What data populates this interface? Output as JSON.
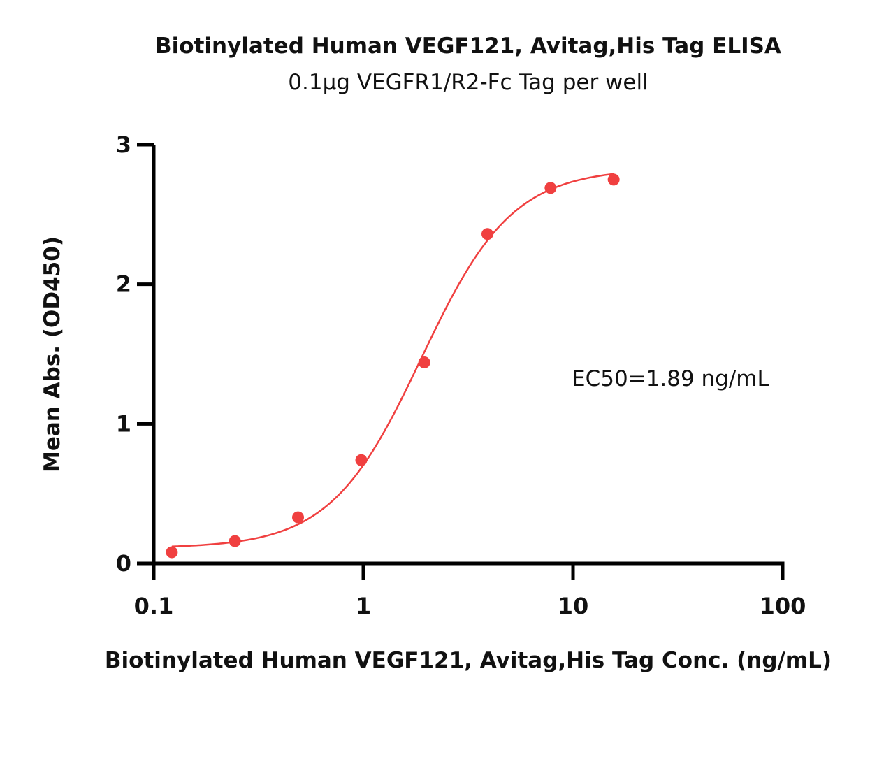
{
  "chart_data": {
    "type": "scatter",
    "title": "Biotinylated Human VEGF121, Avitag,His Tag ELISA",
    "subtitle": "0.1µg VEGFR1/R2-Fc Tag per well",
    "xlabel": "Biotinylated Human VEGF121, Avitag,His Tag Conc. (ng/mL)",
    "ylabel": "Mean Abs. (OD450)",
    "x_scale": "log",
    "xlim": [
      0.1,
      100
    ],
    "ylim": [
      0,
      3
    ],
    "x_ticks": [
      "0.1",
      "1",
      "10",
      "100"
    ],
    "y_ticks": [
      "0",
      "1",
      "2",
      "3"
    ],
    "annotation": "EC50=1.89 ng/mL",
    "color": "#f04040",
    "series": [
      {
        "x": [
          0.122,
          0.244,
          0.488,
          0.977,
          1.953,
          3.906,
          7.813,
          15.625
        ],
        "y": [
          0.08,
          0.16,
          0.33,
          0.74,
          1.44,
          2.36,
          2.69,
          2.75
        ]
      }
    ],
    "fit_curve": {
      "model": "4PL",
      "bottom": 0.11,
      "top": 2.83,
      "ec50": 1.89,
      "hill": 2.0
    }
  }
}
